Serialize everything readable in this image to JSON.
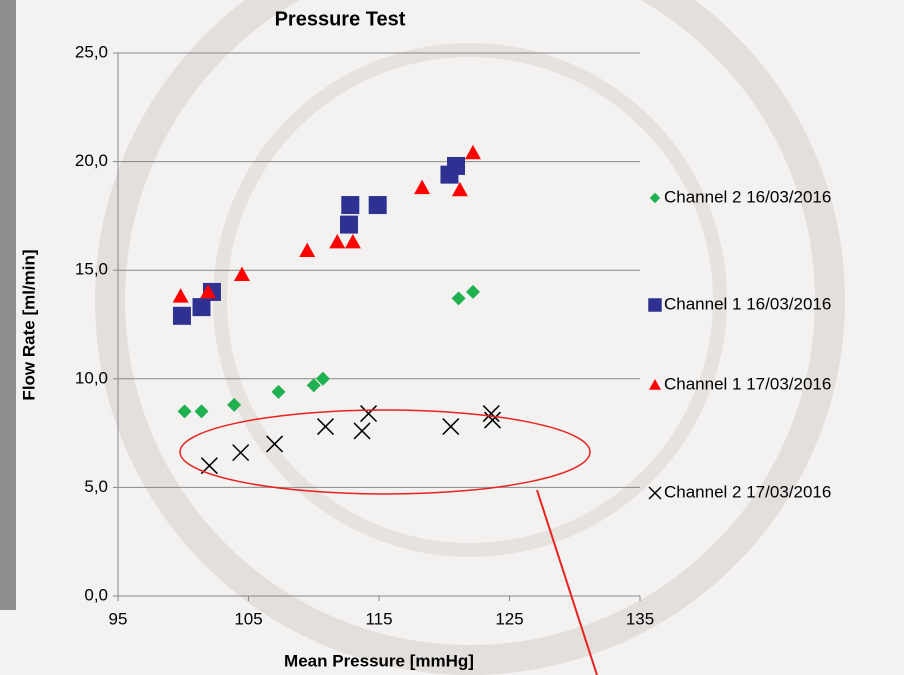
{
  "chart_data": {
    "type": "scatter",
    "title": "Pressure Test",
    "x_label": "Mean Pressure [mmHg]",
    "y_label": "Flow Rate [ml/min]",
    "xlim": [
      95,
      135
    ],
    "xticks": [
      95,
      105,
      115,
      125,
      135
    ],
    "ylim": [
      0,
      25
    ],
    "yticks": [
      {
        "value": 0,
        "label": "0,0"
      },
      {
        "value": 5,
        "label": "5,0"
      },
      {
        "value": 10,
        "label": "10,0"
      },
      {
        "value": 15,
        "label": "15,0"
      },
      {
        "value": 20,
        "label": "20,0"
      },
      {
        "value": 25,
        "label": "25,0"
      }
    ],
    "grid": true,
    "legend": "right",
    "series": [
      {
        "name": "Channel 2 16/03/2016",
        "color": "#1fb050",
        "marker": "diamond",
        "x": [
          100.1,
          101.4,
          103.9,
          107.3,
          110.0,
          110.7,
          121.1,
          122.2
        ],
        "values": [
          8.5,
          8.5,
          8.8,
          9.4,
          9.7,
          10.0,
          13.7,
          14.0
        ]
      },
      {
        "name": "Channel 1 16/03/2016",
        "color": "#2e3192",
        "marker": "square",
        "x": [
          99.9,
          101.4,
          102.2,
          112.7,
          112.8,
          114.9,
          120.4,
          120.9
        ],
        "values": [
          12.9,
          13.3,
          14.0,
          17.1,
          18.0,
          18.0,
          19.4,
          19.8
        ]
      },
      {
        "name": "Channel 1 17/03/2016",
        "color": "#ff0000",
        "marker": "triangle",
        "x": [
          99.8,
          101.9,
          104.5,
          109.5,
          111.8,
          113.0,
          118.3,
          121.2,
          122.2
        ],
        "values": [
          13.8,
          14.0,
          14.8,
          15.9,
          16.3,
          16.3,
          18.8,
          18.7,
          20.4
        ]
      },
      {
        "name": "Channel 2 17/03/2016",
        "color": "#000000",
        "marker": "x",
        "x": [
          102.0,
          104.4,
          107.0,
          110.9,
          113.7,
          114.2,
          120.5,
          123.6,
          123.7
        ],
        "values": [
          6.0,
          6.6,
          7.0,
          7.8,
          7.6,
          8.4,
          7.8,
          8.4,
          8.1
        ]
      }
    ]
  }
}
